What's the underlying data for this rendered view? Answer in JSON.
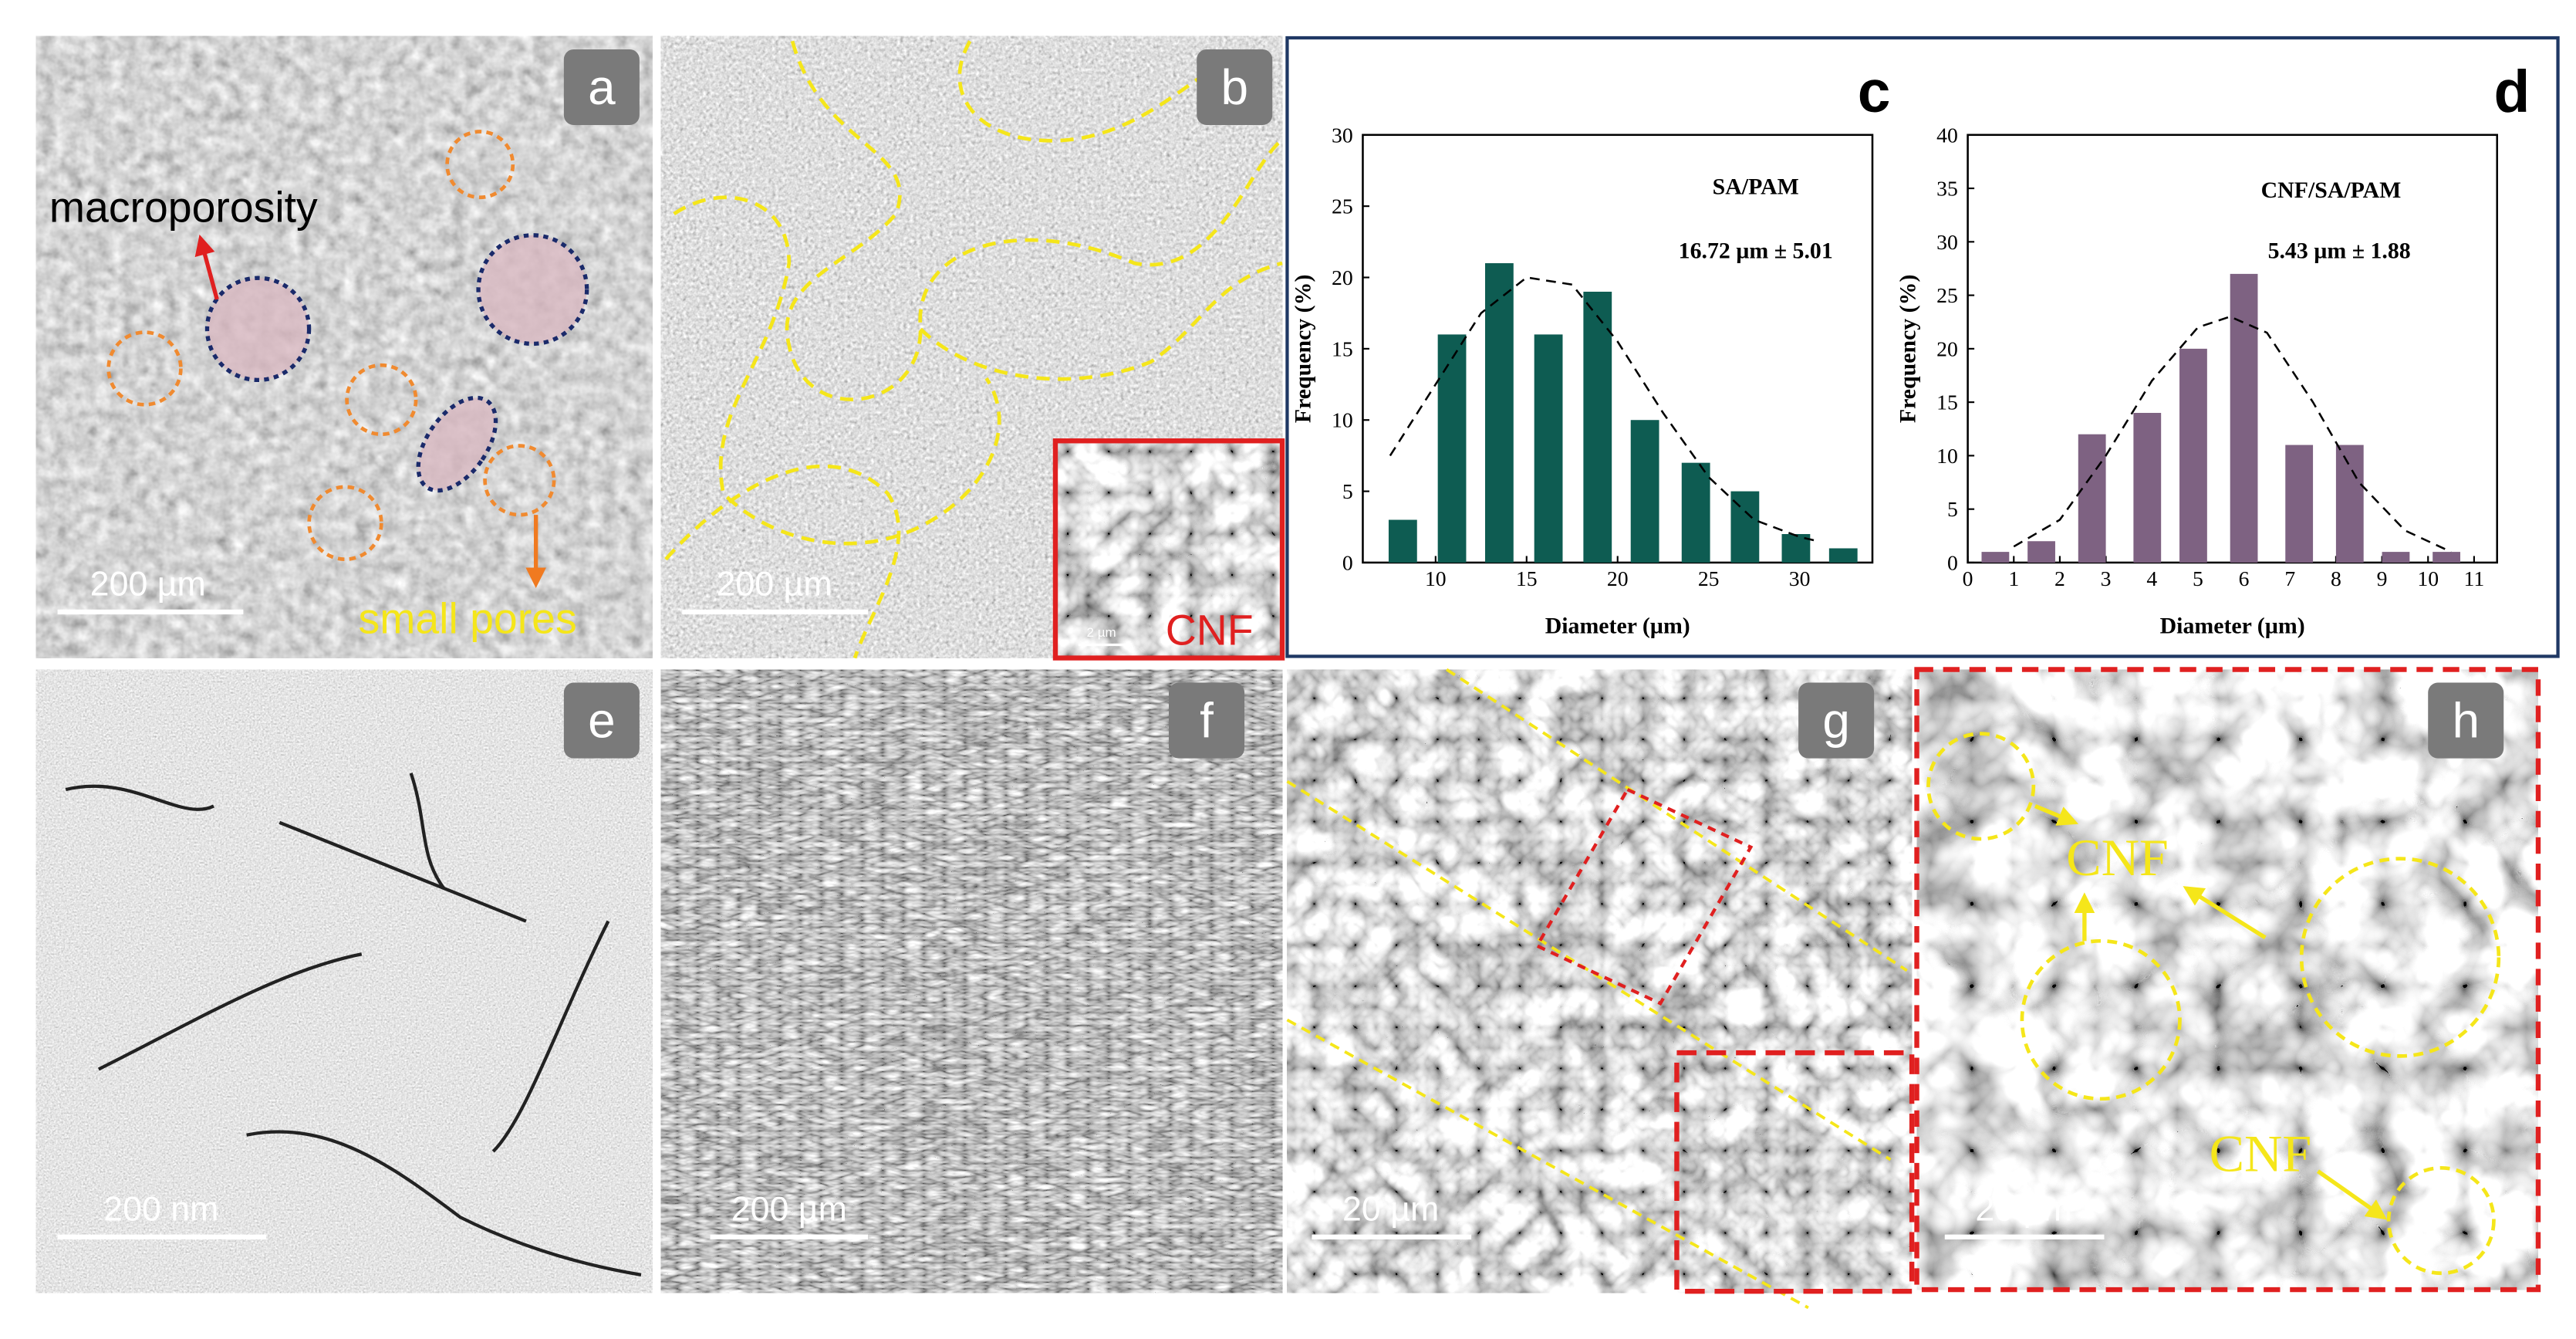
{
  "panels": {
    "a": {
      "label": "a",
      "scale_bar": "200 µm",
      "annotations": [
        "macroporosity",
        "small pores"
      ]
    },
    "b": {
      "label": "b",
      "scale_bar": "200 µm",
      "inset_label": "CNF",
      "inset_scale_bar": "2 µm"
    },
    "e": {
      "label": "e",
      "scale_bar": "200 nm"
    },
    "f": {
      "label": "f",
      "scale_bar": "200 µm"
    },
    "g": {
      "label": "g",
      "scale_bar": "20 µm"
    },
    "h": {
      "label": "h",
      "scale_bar": "20 µm",
      "annotations": [
        "CNF",
        "CNF"
      ]
    }
  },
  "chart_data": [
    {
      "type": "bar",
      "panel": "c",
      "annotations": [
        "SA/PAM",
        "16.72 µm ± 5.01"
      ],
      "xlabel": "Diameter (µm)",
      "ylabel": "Frequency (%)",
      "x": [
        8.2,
        10.9,
        13.5,
        16.2,
        18.9,
        21.5,
        24.3,
        27,
        29.8,
        32.4
      ],
      "values": [
        3,
        16,
        21,
        16,
        19,
        10,
        7,
        5,
        2,
        1
      ],
      "color": "#0e5c52",
      "xlim": [
        6,
        34
      ],
      "xticks": [
        10,
        15,
        20,
        25,
        30
      ],
      "ylim": [
        0,
        30
      ],
      "yticks": [
        0,
        5,
        10,
        15,
        20,
        25,
        30
      ],
      "fit": {
        "x": [
          7.5,
          10,
          12.5,
          15,
          17.5,
          20,
          22.5,
          25,
          27.5,
          30,
          31
        ],
        "values": [
          7.5,
          12.5,
          17.5,
          20,
          19.5,
          15.5,
          10.5,
          6,
          3,
          1.8,
          1.5
        ]
      }
    },
    {
      "type": "bar",
      "panel": "d",
      "annotations": [
        "CNF/SA/PAM",
        "5.43 µm ± 1.88"
      ],
      "xlabel": "Diameter (µm)",
      "ylabel": "Frequency (%)",
      "x": [
        0.6,
        1.6,
        2.7,
        3.9,
        4.9,
        6.0,
        7.2,
        8.3,
        9.3,
        10.4
      ],
      "values": [
        1,
        2,
        12,
        14,
        20,
        27,
        11,
        11,
        1,
        1
      ],
      "color": "#7e6282",
      "xlim": [
        0,
        11.5
      ],
      "xticks": [
        0,
        1,
        2,
        3,
        4,
        5,
        6,
        7,
        8,
        9,
        10,
        11
      ],
      "ylim": [
        0,
        40
      ],
      "yticks": [
        0,
        5,
        10,
        15,
        20,
        25,
        30,
        35,
        40
      ],
      "fit": {
        "x": [
          1,
          2,
          3,
          4,
          5,
          5.7,
          6.5,
          7.5,
          8.5,
          9.5,
          10.5
        ],
        "values": [
          1.5,
          4,
          10,
          17,
          22,
          23,
          21.5,
          15,
          7.5,
          3,
          1
        ]
      }
    }
  ]
}
